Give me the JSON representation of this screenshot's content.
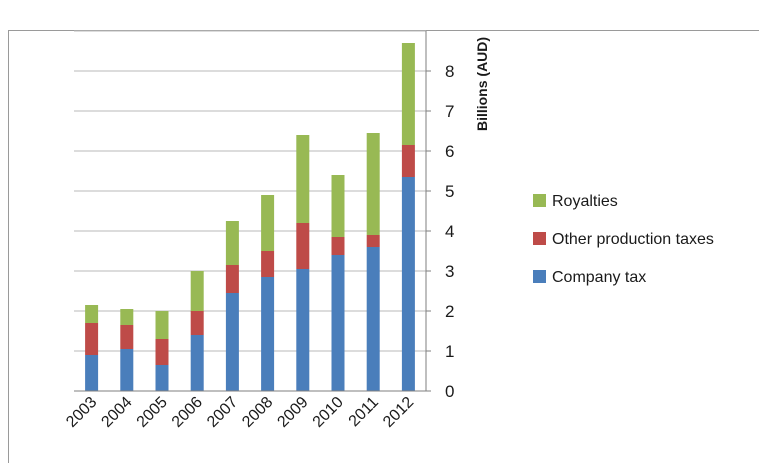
{
  "chart_data": {
    "type": "bar",
    "stacked": true,
    "categories": [
      "2003",
      "2004",
      "2005",
      "2006",
      "2007",
      "2008",
      "2009",
      "2010",
      "2011",
      "2012"
    ],
    "series": [
      {
        "name": "Company tax",
        "color": "#4a7ebb",
        "values": [
          0.9,
          1.05,
          0.65,
          1.4,
          2.45,
          2.85,
          3.05,
          3.4,
          3.6,
          5.35
        ]
      },
      {
        "name": "Other production taxes",
        "color": "#be4b48",
        "values": [
          0.8,
          0.6,
          0.65,
          0.6,
          0.7,
          0.65,
          1.15,
          0.45,
          0.3,
          0.8
        ]
      },
      {
        "name": "Royalties",
        "color": "#98b954",
        "values": [
          0.45,
          0.4,
          0.7,
          1.0,
          1.1,
          1.4,
          2.2,
          1.55,
          2.55,
          2.55
        ]
      }
    ],
    "ylabel": "Billions (AUD)",
    "ylim": [
      0,
      9
    ],
    "yticks": [
      "0",
      "1",
      "2",
      "3",
      "4",
      "5",
      "6",
      "7",
      "8"
    ],
    "grid": true,
    "legend_position": "right",
    "legend": [
      "Royalties",
      "Other production taxes",
      "Company tax"
    ]
  }
}
